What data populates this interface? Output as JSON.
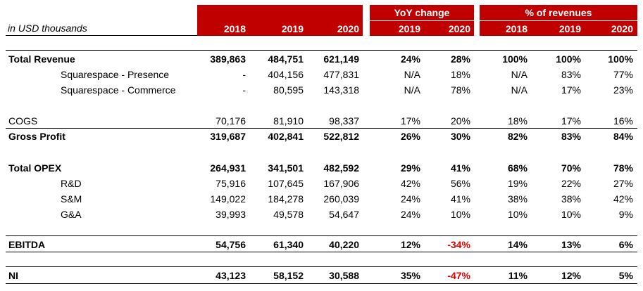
{
  "unit_label": "in USD thousands",
  "groups": {
    "yoy": "YoY change",
    "pct": "% of revenues"
  },
  "years": {
    "abs": [
      "2018",
      "2019",
      "2020"
    ],
    "yoy": [
      "2019",
      "2020"
    ],
    "pct": [
      "2018",
      "2019",
      "2020"
    ]
  },
  "rows": [
    {
      "label": "Total Revenue",
      "bold": true,
      "indent": 0,
      "abs": [
        "389,863",
        "484,751",
        "621,149"
      ],
      "yoy": [
        "24%",
        "28%"
      ],
      "pct": [
        "100%",
        "100%",
        "100%"
      ]
    },
    {
      "label": "Squarespace - Presence",
      "bold": false,
      "indent": 1,
      "abs": [
        "-",
        "404,156",
        "477,831"
      ],
      "yoy": [
        "N/A",
        "18%"
      ],
      "pct": [
        "N/A",
        "83%",
        "77%"
      ]
    },
    {
      "label": "Squarespace - Commerce",
      "bold": false,
      "indent": 1,
      "abs": [
        "-",
        "80,595",
        "143,318"
      ],
      "yoy": [
        "N/A",
        "78%"
      ],
      "pct": [
        "N/A",
        "17%",
        "23%"
      ]
    },
    {
      "label": "COGS",
      "bold": false,
      "indent": 0,
      "abs": [
        "70,176",
        "81,910",
        "98,337"
      ],
      "yoy": [
        "17%",
        "20%"
      ],
      "pct": [
        "18%",
        "17%",
        "16%"
      ]
    },
    {
      "label": "Gross Profit",
      "bold": true,
      "indent": 0,
      "abs": [
        "319,687",
        "402,841",
        "522,812"
      ],
      "yoy": [
        "26%",
        "30%"
      ],
      "pct": [
        "82%",
        "83%",
        "84%"
      ]
    },
    {
      "label": "Total OPEX",
      "bold": true,
      "indent": 0,
      "abs": [
        "264,931",
        "341,501",
        "482,592"
      ],
      "yoy": [
        "29%",
        "41%"
      ],
      "pct": [
        "68%",
        "70%",
        "78%"
      ]
    },
    {
      "label": "R&D",
      "bold": false,
      "indent": 2,
      "abs": [
        "75,916",
        "107,645",
        "167,906"
      ],
      "yoy": [
        "42%",
        "56%"
      ],
      "pct": [
        "19%",
        "22%",
        "27%"
      ]
    },
    {
      "label": "S&M",
      "bold": false,
      "indent": 2,
      "abs": [
        "149,022",
        "184,278",
        "260,039"
      ],
      "yoy": [
        "24%",
        "41%"
      ],
      "pct": [
        "38%",
        "38%",
        "42%"
      ]
    },
    {
      "label": "G&A",
      "bold": false,
      "indent": 2,
      "abs": [
        "39,993",
        "49,578",
        "54,647"
      ],
      "yoy": [
        "24%",
        "10%"
      ],
      "pct": [
        "10%",
        "10%",
        "9%"
      ]
    },
    {
      "label": "EBITDA",
      "bold": true,
      "indent": 0,
      "abs": [
        "54,756",
        "61,340",
        "40,220"
      ],
      "yoy": [
        "12%",
        "-34%"
      ],
      "pct": [
        "14%",
        "13%",
        "6%"
      ]
    },
    {
      "label": "NI",
      "bold": true,
      "indent": 0,
      "abs": [
        "43,123",
        "58,152",
        "30,588"
      ],
      "yoy": [
        "35%",
        "-47%"
      ],
      "pct": [
        "11%",
        "12%",
        "5%"
      ]
    }
  ],
  "colors": {
    "header_bg": "#c00000",
    "negative_text": "#e00000"
  }
}
